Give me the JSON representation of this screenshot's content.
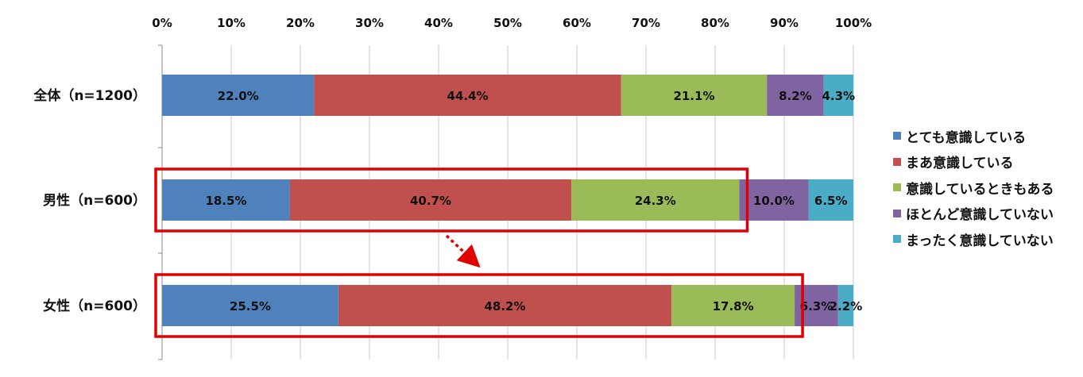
{
  "chart_data": {
    "type": "bar",
    "orientation": "horizontal",
    "stacked": true,
    "x_ticks": [
      "0%",
      "10%",
      "20%",
      "30%",
      "40%",
      "50%",
      "60%",
      "70%",
      "80%",
      "90%",
      "100%"
    ],
    "xlim": [
      0,
      100
    ],
    "grid": "vertical",
    "categories": [
      "全体（n=1200）",
      "男性（n=600）",
      "女性（n=600）"
    ],
    "series": [
      {
        "name": "とても意識している",
        "color": "#4f81bd",
        "values": [
          22.0,
          18.5,
          25.5
        ],
        "labels": [
          "22.0%",
          "18.5%",
          "25.5%"
        ]
      },
      {
        "name": "まあ意識している",
        "color": "#c0504d",
        "values": [
          44.4,
          40.7,
          48.2
        ],
        "labels": [
          "44.4%",
          "40.7%",
          "48.2%"
        ]
      },
      {
        "name": "意識しているときもある",
        "color": "#9bbb59",
        "values": [
          21.1,
          24.3,
          17.8
        ],
        "labels": [
          "21.1%",
          "24.3%",
          "17.8%"
        ]
      },
      {
        "name": "ほとんど意識していない",
        "color": "#8064a2",
        "values": [
          8.2,
          10.0,
          6.3
        ],
        "labels": [
          "8.2%",
          "10.0%",
          "6.3%"
        ]
      },
      {
        "name": "まったく意識していない",
        "color": "#4bacc6",
        "values": [
          4.3,
          6.5,
          2.2
        ],
        "labels": [
          "4.3%",
          "6.5%",
          "2.2%"
        ]
      }
    ],
    "legend_position": "right",
    "highlighted_categories": [
      "男性（n=600）",
      "女性（n=600）"
    ],
    "highlight_color": "#e00000"
  }
}
